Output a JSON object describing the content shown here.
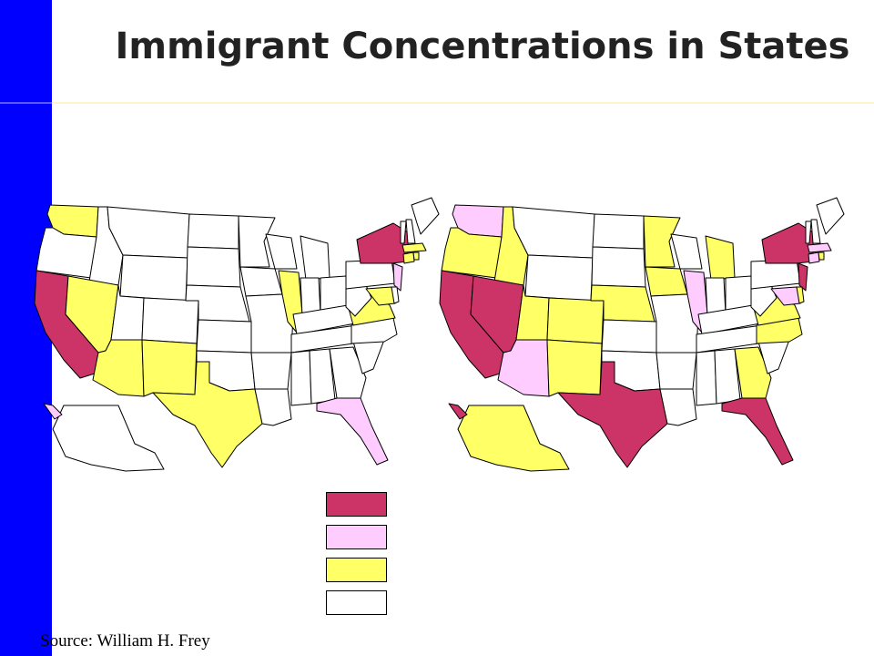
{
  "title": "Immigrant Concentrations in States",
  "source": "Source: William H. Frey",
  "colors": {
    "high": "#cc3366",
    "medium": "#ffccff",
    "low": "#ffff66",
    "none": "#ffffff",
    "bar": "#0000ff"
  },
  "legend": [
    {
      "level": "high"
    },
    {
      "level": "medium"
    },
    {
      "level": "low"
    },
    {
      "level": "none"
    }
  ],
  "maps": [
    {
      "states": {
        "CA": "high",
        "NY": "high",
        "NJ": "medium",
        "FL": "medium",
        "HI": "medium",
        "WA": "low",
        "NV": "low",
        "AZ": "low",
        "NM": "low",
        "TX": "low",
        "IL": "low",
        "VA": "low",
        "MD": "low",
        "MA": "low",
        "CT": "low",
        "RI": "low"
      }
    },
    {
      "states": {
        "CA": "high",
        "NV": "high",
        "TX": "high",
        "NY": "high",
        "NJ": "high",
        "FL": "high",
        "HI": "high",
        "WA": "medium",
        "AZ": "medium",
        "IL": "medium",
        "MA": "medium",
        "CT": "medium",
        "MD": "medium",
        "OR": "low",
        "ID": "low",
        "UT": "low",
        "CO": "low",
        "NM": "low",
        "NE": "low",
        "MN": "low",
        "IA": "low",
        "MI": "low",
        "GA": "low",
        "NC": "low",
        "VA": "low",
        "DE": "low",
        "RI": "low",
        "AK": "low"
      }
    }
  ]
}
